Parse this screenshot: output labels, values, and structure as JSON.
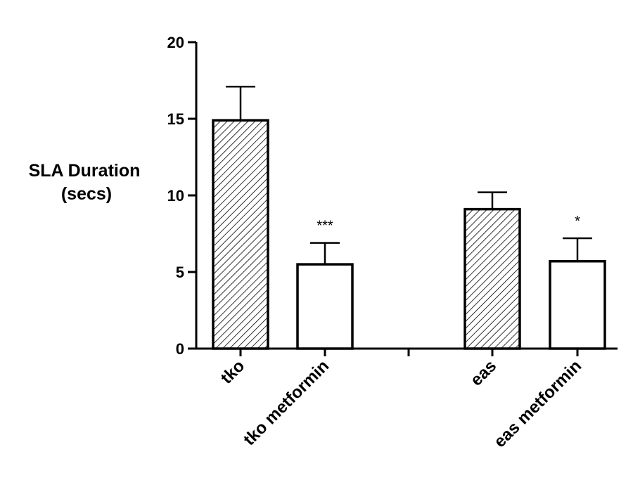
{
  "chart_data": {
    "type": "bar",
    "ylabel_lines": [
      "SLA Duration",
      "(secs)"
    ],
    "ylim": [
      0,
      20
    ],
    "yticks": [
      0,
      5,
      10,
      15,
      20
    ],
    "categories": [
      "tko",
      "tko metformin",
      "eas",
      "eas metformin"
    ],
    "values": [
      14.9,
      5.5,
      9.1,
      5.7
    ],
    "errors": [
      2.2,
      1.4,
      1.1,
      1.5
    ],
    "fill_patterns": [
      "hatched",
      "open",
      "hatched",
      "open"
    ],
    "annotations": [
      "",
      "***",
      "",
      "*"
    ],
    "grid": false,
    "legend": false
  }
}
